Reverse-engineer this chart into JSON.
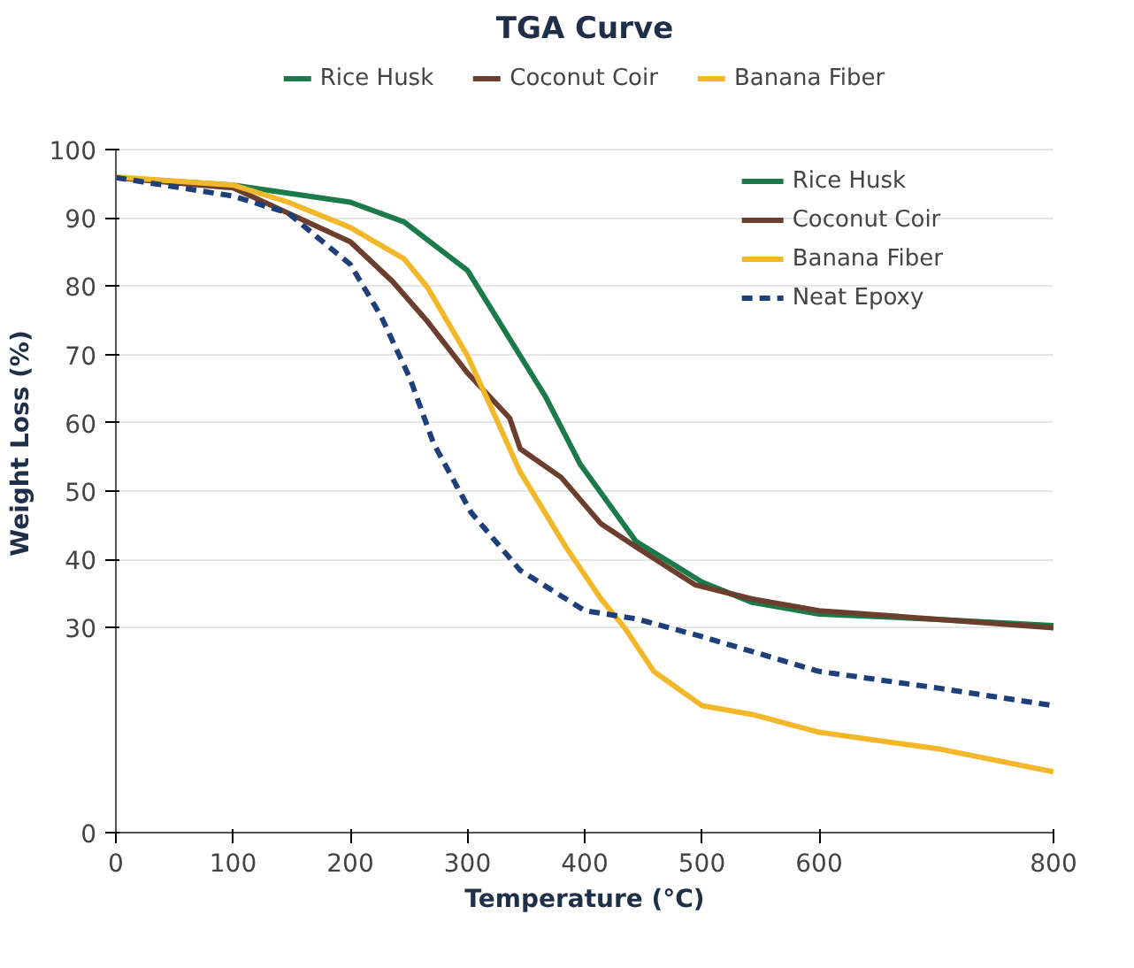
{
  "chart_data": {
    "type": "line",
    "title": "TGA Curve",
    "xlabel": "Temperature (°C)",
    "ylabel": "Weight Loss (%)",
    "xlim": [
      0,
      800
    ],
    "xticks": [
      0,
      100,
      200,
      300,
      400,
      500,
      600,
      800
    ],
    "ylim": [
      0,
      100
    ],
    "yticks": [
      0,
      30,
      40,
      50,
      60,
      70,
      80,
      90,
      100
    ],
    "grid": "y",
    "legend": "top right",
    "marker": "none",
    "series": [
      {
        "name": "Rice Husk",
        "color": "#1a7a4a",
        "line_style": "solid",
        "x": [
          0,
          100,
          200,
          246,
          300,
          336,
          366,
          396,
          444,
          500,
          543,
          600,
          704,
          800
        ],
        "values": [
          95.9,
          94.8,
          92.3,
          89.4,
          82.3,
          72.3,
          64,
          54,
          42.6,
          36.7,
          33.7,
          32,
          31.2,
          30.3
        ]
      },
      {
        "name": "Coconut Coir",
        "color": "#6b3e2e",
        "line_style": "solid",
        "x": [
          0,
          100,
          147,
          200,
          236,
          266,
          300,
          336,
          345,
          380,
          414,
          444,
          494,
          543,
          600,
          800
        ],
        "values": [
          95.9,
          94.4,
          90.7,
          86.5,
          80.7,
          74.8,
          67.3,
          60.7,
          56.2,
          52,
          45.2,
          41.8,
          36.3,
          34.2,
          32.5,
          30
        ]
      },
      {
        "name": "Banana Fiber",
        "color": "#f2b82a",
        "line_style": "solid",
        "x": [
          0,
          100,
          147,
          200,
          246,
          266,
          300,
          320,
          345,
          384,
          414,
          434,
          459,
          500,
          543,
          600,
          704,
          800
        ],
        "values": [
          96,
          94.8,
          92.3,
          88.6,
          84,
          79.8,
          69.8,
          62.3,
          52.8,
          41.8,
          34.2,
          30,
          23.6,
          18.6,
          17.3,
          14.7,
          12.2,
          8.9
        ]
      },
      {
        "name": "Neat Epoxy",
        "color": "#1f3f7a",
        "line_style": "dashed",
        "x": [
          0,
          100,
          147,
          171,
          200,
          226,
          251,
          271,
          303,
          345,
          400,
          444,
          500,
          600,
          704,
          800
        ],
        "values": [
          95.9,
          93.2,
          90.7,
          87.3,
          83.2,
          75.7,
          66.5,
          57,
          46.9,
          38.4,
          32.5,
          31.3,
          28.7,
          23.6,
          21.1,
          18.6
        ]
      }
    ]
  }
}
